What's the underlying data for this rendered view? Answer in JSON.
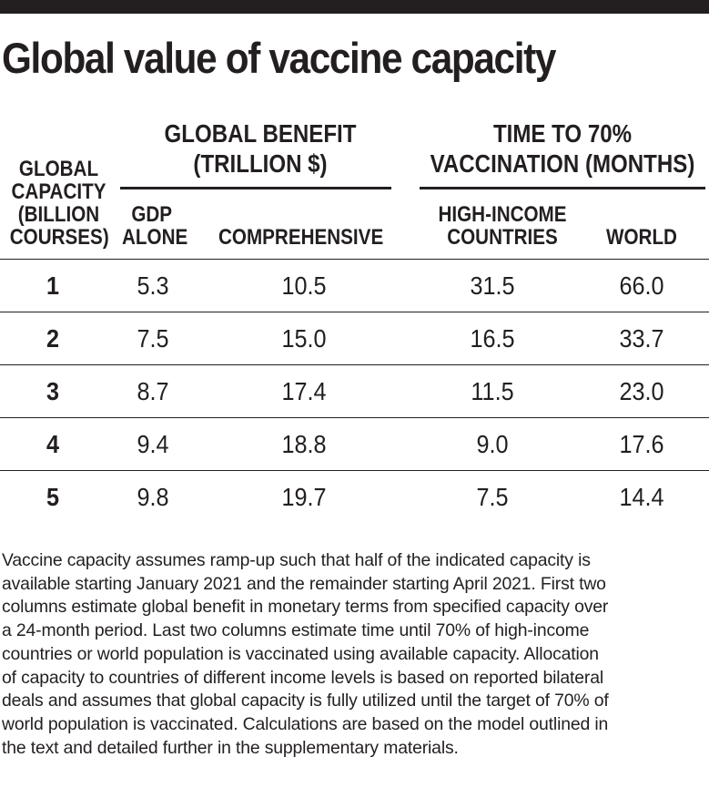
{
  "title": "Global value of vaccine capacity",
  "table": {
    "group_headers": {
      "benefit_line1": "GLOBAL BENEFIT",
      "benefit_line2": "(TRILLION $)",
      "time_line1": "TIME TO 70%",
      "time_line2": "VACCINATION (MONTHS)"
    },
    "column_headers": {
      "capacity": [
        "GLOBAL",
        "CAPACITY",
        "(BILLION",
        "COURSES)"
      ],
      "gdp": [
        "GDP",
        "ALONE"
      ],
      "comprehensive": [
        "COMPREHENSIVE"
      ],
      "high_income": [
        "HIGH-INCOME",
        "COUNTRIES"
      ],
      "world": [
        "WORLD"
      ]
    },
    "rows": [
      {
        "capacity": "1",
        "gdp": "5.3",
        "comprehensive": "10.5",
        "high_income": "31.5",
        "world": "66.0"
      },
      {
        "capacity": "2",
        "gdp": "7.5",
        "comprehensive": "15.0",
        "high_income": "16.5",
        "world": "33.7"
      },
      {
        "capacity": "3",
        "gdp": "8.7",
        "comprehensive": "17.4",
        "high_income": "11.5",
        "world": "23.0"
      },
      {
        "capacity": "4",
        "gdp": "9.4",
        "comprehensive": "18.8",
        "high_income": "9.0",
        "world": "17.6"
      },
      {
        "capacity": "5",
        "gdp": "9.8",
        "comprehensive": "19.7",
        "high_income": "7.5",
        "world": "14.4"
      }
    ]
  },
  "footnote_lines": [
    "Vaccine capacity assumes ramp-up such that half of the indicated capacity is",
    "available starting January 2021 and the remainder starting April 2021. First two",
    "columns estimate global benefit in monetary terms from specified capacity over",
    "a 24-month period. Last two columns estimate time until 70% of high-income",
    "countries or world population is vaccinated using available capacity. Allocation",
    "of capacity to countries of different income levels is based on reported bilateral",
    "deals and assumes that global capacity is fully utilized until the target of 70% of",
    "world population is vaccinated. Calculations are based on the model outlined in",
    "the text and detailed further in the supplementary materials."
  ]
}
